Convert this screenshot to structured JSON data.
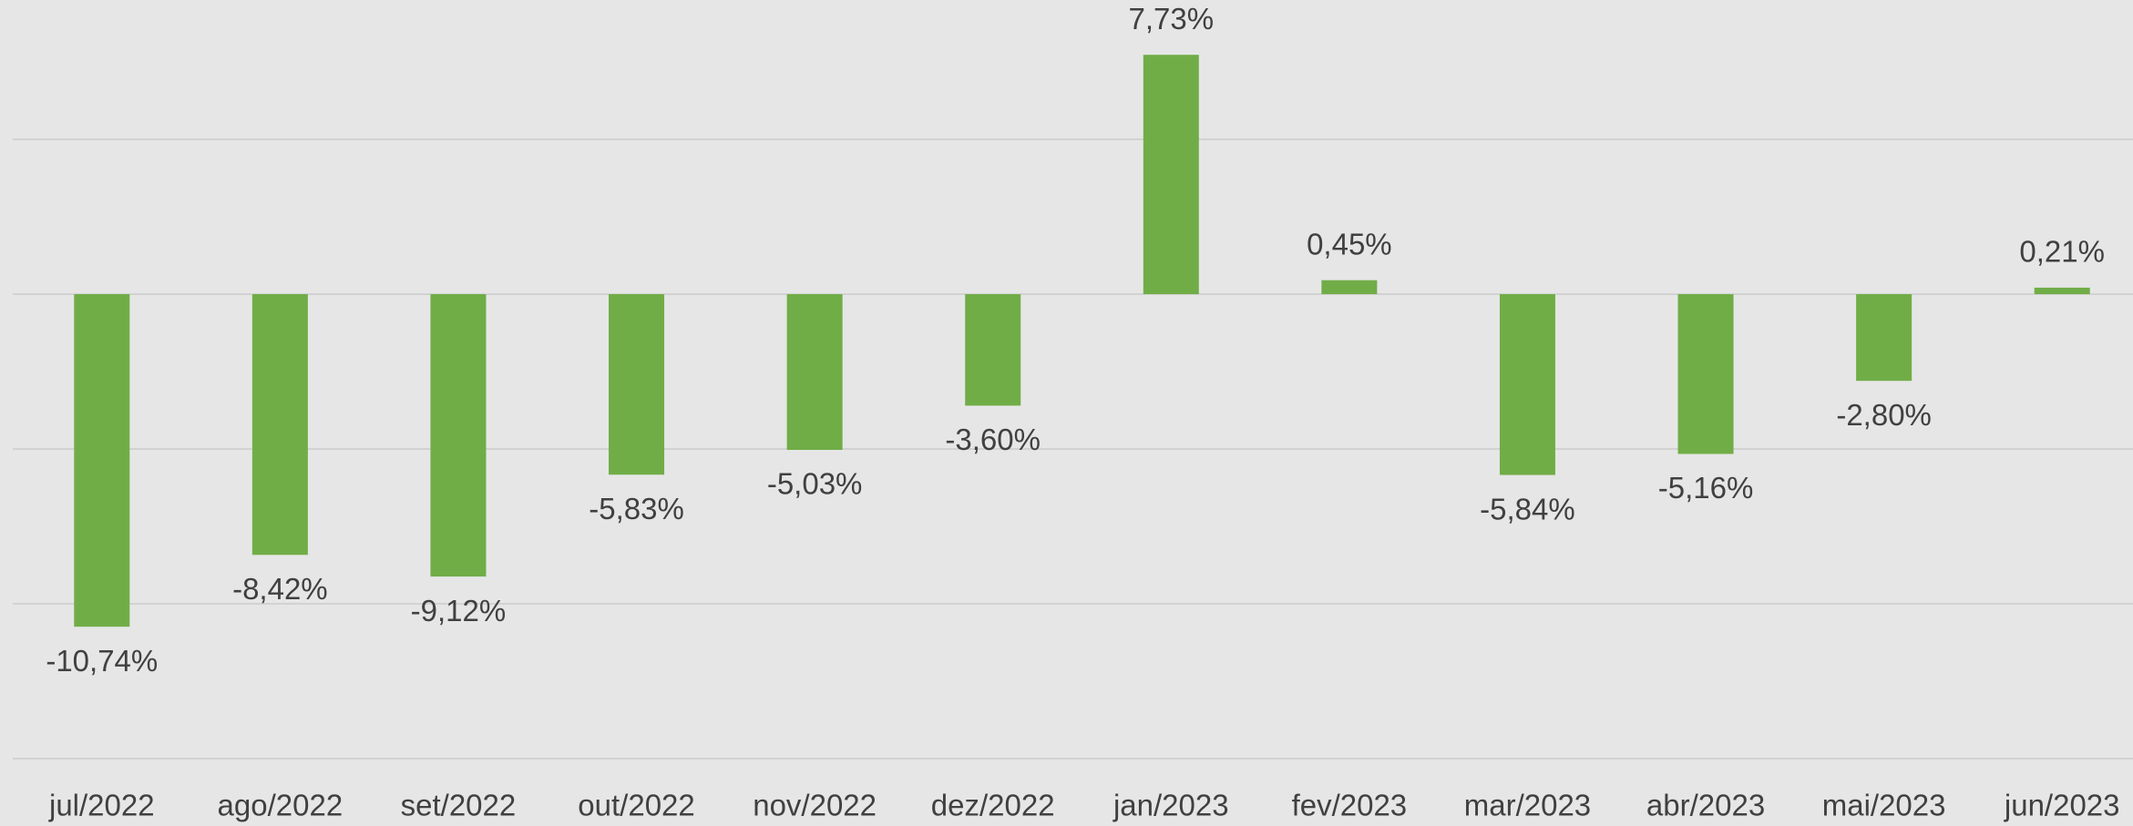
{
  "chart_data": {
    "type": "bar",
    "categories": [
      "jul/2022",
      "ago/2022",
      "set/2022",
      "out/2022",
      "nov/2022",
      "dez/2022",
      "jan/2023",
      "fev/2023",
      "mar/2023",
      "abr/2023",
      "mai/2023",
      "jun/2023"
    ],
    "values": [
      -10.74,
      -8.42,
      -9.12,
      -5.83,
      -5.03,
      -3.6,
      7.73,
      0.45,
      -5.84,
      -5.16,
      -2.8,
      0.21
    ],
    "value_labels": [
      "-10,74%",
      "-8,42%",
      "-9,12%",
      "-5,83%",
      "-5,03%",
      "-3,60%",
      "7,73%",
      "0,45%",
      "-5,84%",
      "-5,16%",
      "-2,80%",
      "0,21%"
    ],
    "color": "#70ad47",
    "ylim": [
      -15,
      9.5
    ],
    "yticks": [
      -15,
      -10,
      -5,
      0,
      5
    ],
    "grid": true
  }
}
